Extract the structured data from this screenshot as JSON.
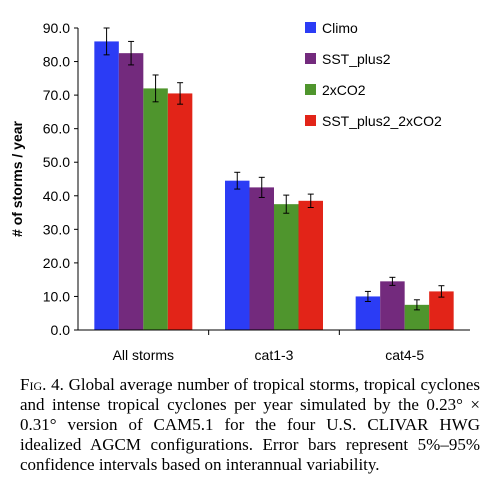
{
  "chart_data": {
    "type": "bar",
    "categories": [
      "All storms",
      "cat1-3",
      "cat4-5"
    ],
    "series": [
      {
        "name": "Climo",
        "color": "#2b3cf5",
        "values": [
          86.0,
          44.5,
          10.0
        ],
        "err": [
          4.0,
          2.5,
          1.5
        ]
      },
      {
        "name": "SST_plus2",
        "color": "#732a7d",
        "values": [
          82.5,
          42.5,
          14.5
        ],
        "err": [
          3.5,
          3.0,
          1.2
        ]
      },
      {
        "name": "2xCO2",
        "color": "#4f952d",
        "values": [
          72.0,
          37.5,
          7.5
        ],
        "err": [
          4.0,
          2.7,
          1.5
        ]
      },
      {
        "name": "SST_plus2_2xCO2",
        "color": "#e22418",
        "values": [
          70.5,
          38.5,
          11.5
        ],
        "err": [
          3.2,
          2.0,
          1.7
        ]
      }
    ],
    "ylabel": "# of storms / year",
    "xlabel": "",
    "ylim": [
      0,
      90
    ],
    "yticks": [
      "0.0",
      "10.0",
      "20.0",
      "30.0",
      "40.0",
      "50.0",
      "60.0",
      "70.0",
      "80.0",
      "90.0"
    ],
    "legend_position": "top-right",
    "grid": false
  },
  "caption": {
    "label": "Fig. 4.",
    "text": "Global average number of tropical storms, tropical cyclones and intense tropical cyclones per year simulated by the 0.23° × 0.31° version of CAM5.1 for the four U.S. CLIVAR HWG idealized AGCM configurations. Error bars represent 5%–95% confidence intervals based on interannual variability."
  }
}
